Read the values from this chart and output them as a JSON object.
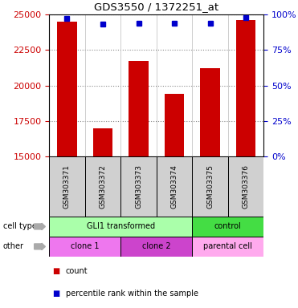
{
  "title": "GDS3550 / 1372251_at",
  "samples": [
    "GSM303371",
    "GSM303372",
    "GSM303373",
    "GSM303374",
    "GSM303375",
    "GSM303376"
  ],
  "counts": [
    24500,
    17000,
    21700,
    19400,
    21200,
    24600
  ],
  "percentile_ranks": [
    97,
    93,
    94,
    94,
    94,
    98
  ],
  "ylim_left": [
    15000,
    25000
  ],
  "ylim_right": [
    0,
    100
  ],
  "yticks_left": [
    15000,
    17500,
    20000,
    22500,
    25000
  ],
  "yticks_right": [
    0,
    25,
    50,
    75,
    100
  ],
  "cell_type_groups": [
    {
      "label": "GLI1 transformed",
      "start": 0,
      "end": 4,
      "color": "#aaffaa"
    },
    {
      "label": "control",
      "start": 4,
      "end": 6,
      "color": "#44dd44"
    }
  ],
  "other_groups": [
    {
      "label": "clone 1",
      "start": 0,
      "end": 2,
      "color": "#ee77ee"
    },
    {
      "label": "clone 2",
      "start": 2,
      "end": 4,
      "color": "#cc44cc"
    },
    {
      "label": "parental cell",
      "start": 4,
      "end": 6,
      "color": "#ffaaee"
    }
  ],
  "bar_color": "#cc0000",
  "dot_color": "#0000cc",
  "left_tick_color": "#cc0000",
  "right_tick_color": "#0000cc",
  "background_color": "#ffffff",
  "sample_bg_color": "#d0d0d0",
  "grid_color": "#888888",
  "legend_count_color": "#cc0000",
  "legend_pct_color": "#0000cc",
  "fig_width": 3.71,
  "fig_height": 3.84,
  "dpi": 100
}
